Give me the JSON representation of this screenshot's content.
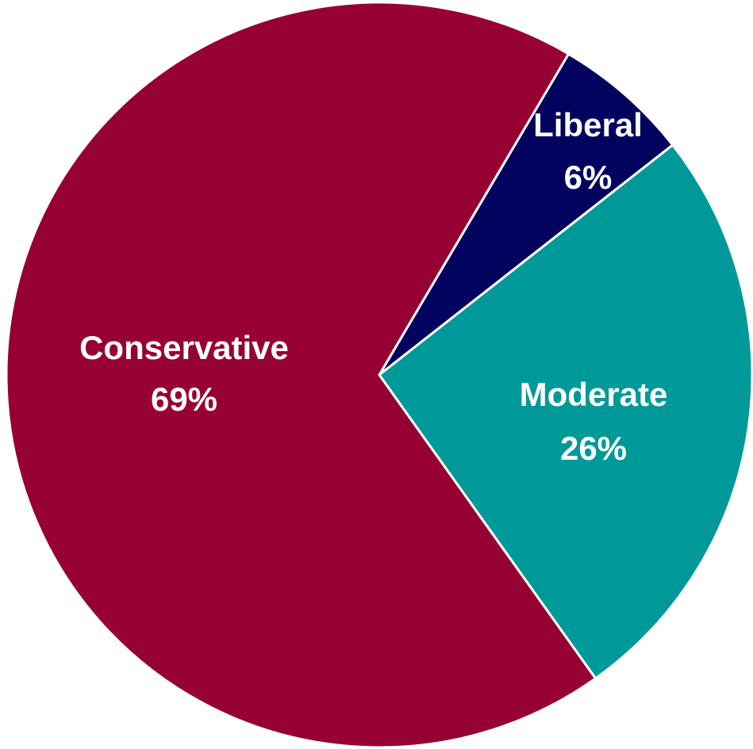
{
  "chart_data": {
    "type": "pie",
    "slices": [
      {
        "label": "Liberal",
        "value": 6,
        "display": "6%",
        "color": "#02035f"
      },
      {
        "label": "Moderate",
        "value": 26,
        "display": "26%",
        "color": "#009999"
      },
      {
        "label": "Conservative",
        "value": 69,
        "display": "69%",
        "color": "#970032"
      }
    ]
  }
}
